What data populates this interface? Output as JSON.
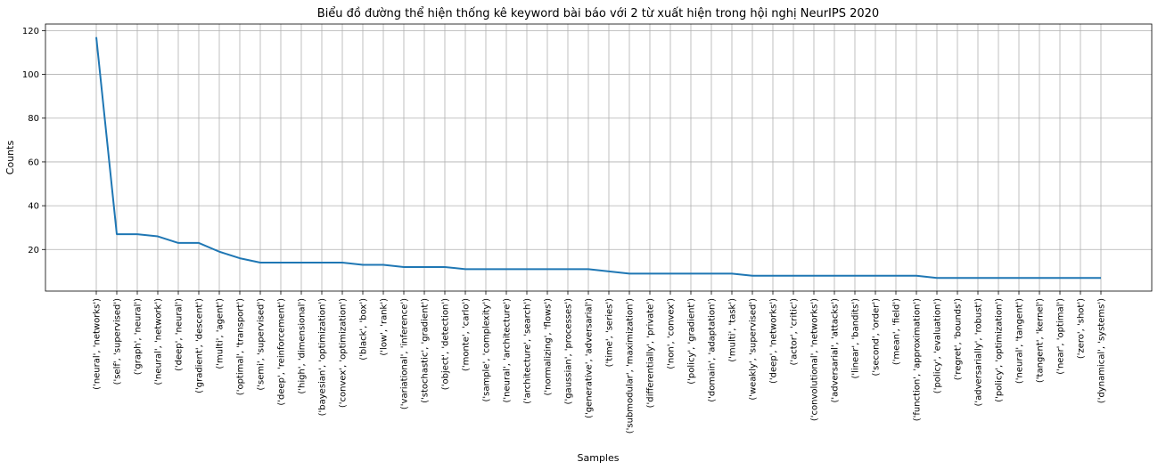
{
  "chart_data": {
    "type": "line",
    "title": "Biểu đồ đường thể hiện thống kê keyword bài báo với 2 từ xuất hiện trong hội nghị NeurIPS 2020",
    "xlabel": "Samples",
    "ylabel": "Counts",
    "ylim": [
      1,
      123
    ],
    "yticks": [
      20,
      40,
      60,
      80,
      100,
      120
    ],
    "grid": true,
    "series_color": "#1f77b4",
    "categories": [
      "('neural', 'networks')",
      "('self', 'supervised')",
      "('graph', 'neural')",
      "('neural', 'network')",
      "('deep', 'neural')",
      "('gradient', 'descent')",
      "('multi', 'agent')",
      "('optimal', 'transport')",
      "('semi', 'supervised')",
      "('deep', 'reinforcement')",
      "('high', 'dimensional')",
      "('bayesian', 'optimization')",
      "('convex', 'optimization')",
      "('black', 'box')",
      "('low', 'rank')",
      "('variational', 'inference')",
      "('stochastic', 'gradient')",
      "('object', 'detection')",
      "('monte', 'carlo')",
      "('sample', 'complexity')",
      "('neural', 'architecture')",
      "('architecture', 'search')",
      "('normalizing', 'flows')",
      "('gaussian', 'processes')",
      "('generative', 'adversarial')",
      "('time', 'series')",
      "('submodular', 'maximization')",
      "('differentially', 'private')",
      "('non', 'convex')",
      "('policy', 'gradient')",
      "('domain', 'adaptation')",
      "('multi', 'task')",
      "('weakly', 'supervised')",
      "('deep', 'networks')",
      "('actor', 'critic')",
      "('convolutional', 'networks')",
      "('adversarial', 'attacks')",
      "('linear', 'bandits')",
      "('second', 'order')",
      "('mean', 'field')",
      "('function', 'approximation')",
      "('policy', 'evaluation')",
      "('regret', 'bounds')",
      "('adversarially', 'robust')",
      "('policy', 'optimization')",
      "('neural', 'tangent')",
      "('tangent', 'kernel')",
      "('near', 'optimal')",
      "('zero', 'shot')",
      "('dynamical', 'systems')"
    ],
    "values": [
      117,
      27,
      27,
      26,
      23,
      23,
      19,
      16,
      14,
      14,
      14,
      14,
      14,
      13,
      13,
      12,
      12,
      12,
      11,
      11,
      11,
      11,
      11,
      11,
      11,
      10,
      9,
      9,
      9,
      9,
      9,
      9,
      8,
      8,
      8,
      8,
      8,
      8,
      8,
      8,
      8,
      7,
      7,
      7,
      7,
      7,
      7,
      7,
      7,
      7
    ]
  }
}
